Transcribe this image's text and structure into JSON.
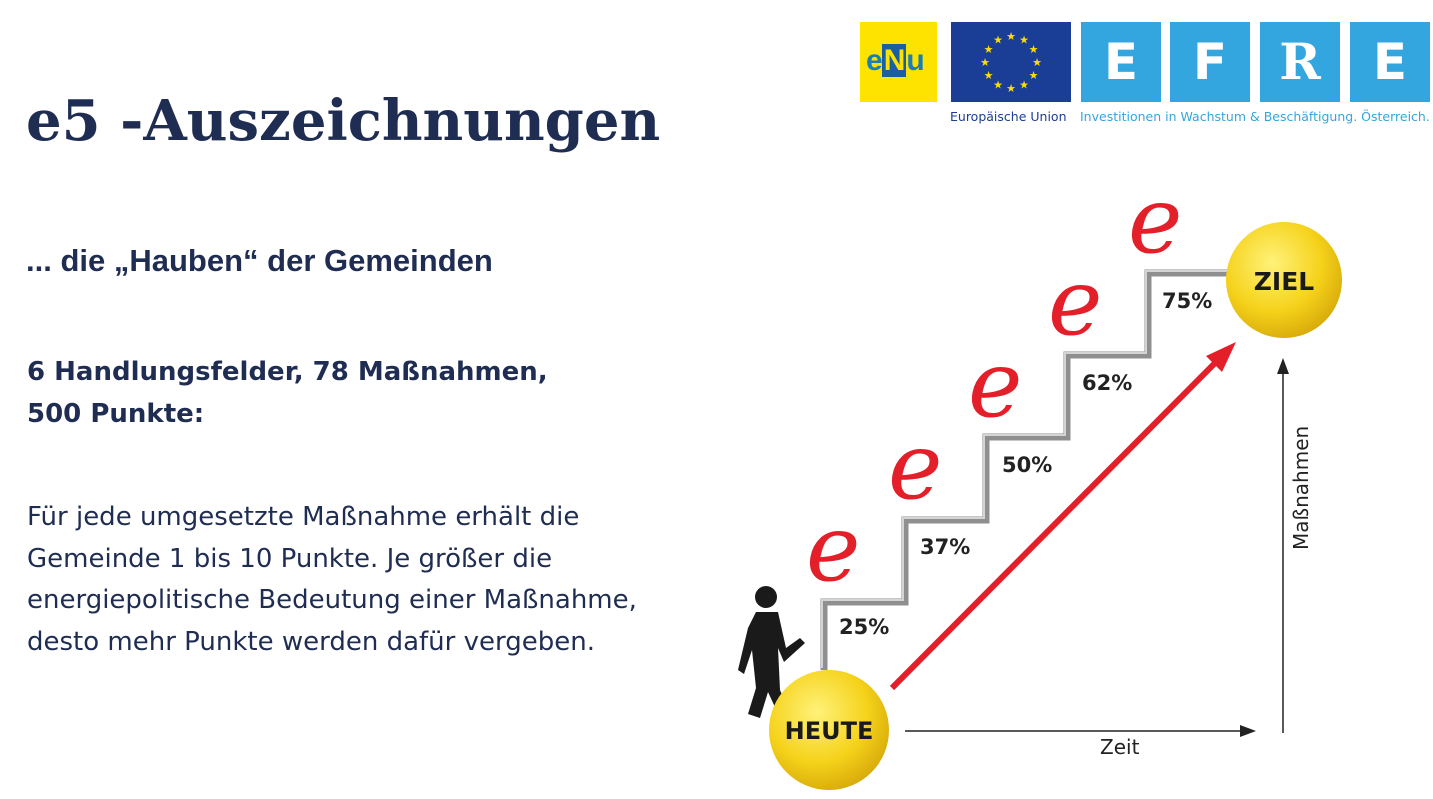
{
  "slide": {
    "title": "e5 -Auszeichnungen",
    "subtitle": "... die „Hauben“ der Gemeinden",
    "facts": [
      "6 Handlungsfelder, 78 Maßnahmen,",
      "500 Punkte:"
    ],
    "description": [
      "Für jede umgesetzte Maßnahme erhält die",
      "Gemeinde 1 bis 10 Punkte. Je größer die",
      "energiepolitische Bedeutung einer Maßnahme,",
      "desto mehr Punkte werden dafür vergeben."
    ]
  },
  "logos": {
    "enu_text": "eNu",
    "efre_letters": [
      "E",
      "F",
      "R",
      "E"
    ],
    "eu_caption": "Europäische Union",
    "efre_caption": "Investitionen in Wachstum & Beschäftigung. Österreich.",
    "colors": {
      "enu_yellow": "#ffe300",
      "eu_blue": "#1a3d95",
      "efre_blue": "#33a6df"
    }
  },
  "diagram": {
    "start_label": "HEUTE",
    "goal_label": "ZIEL",
    "steps": [
      "25%",
      "37%",
      "50%",
      "62%",
      "75%"
    ],
    "step_symbol": "e",
    "x_axis_label": "Zeit",
    "y_axis_label": "Maßnahmen",
    "colors": {
      "circle": "#f5d21a",
      "arrow": "#e3202a",
      "stairs": "#9a9a9a",
      "e_mark": "#e3202a"
    }
  }
}
